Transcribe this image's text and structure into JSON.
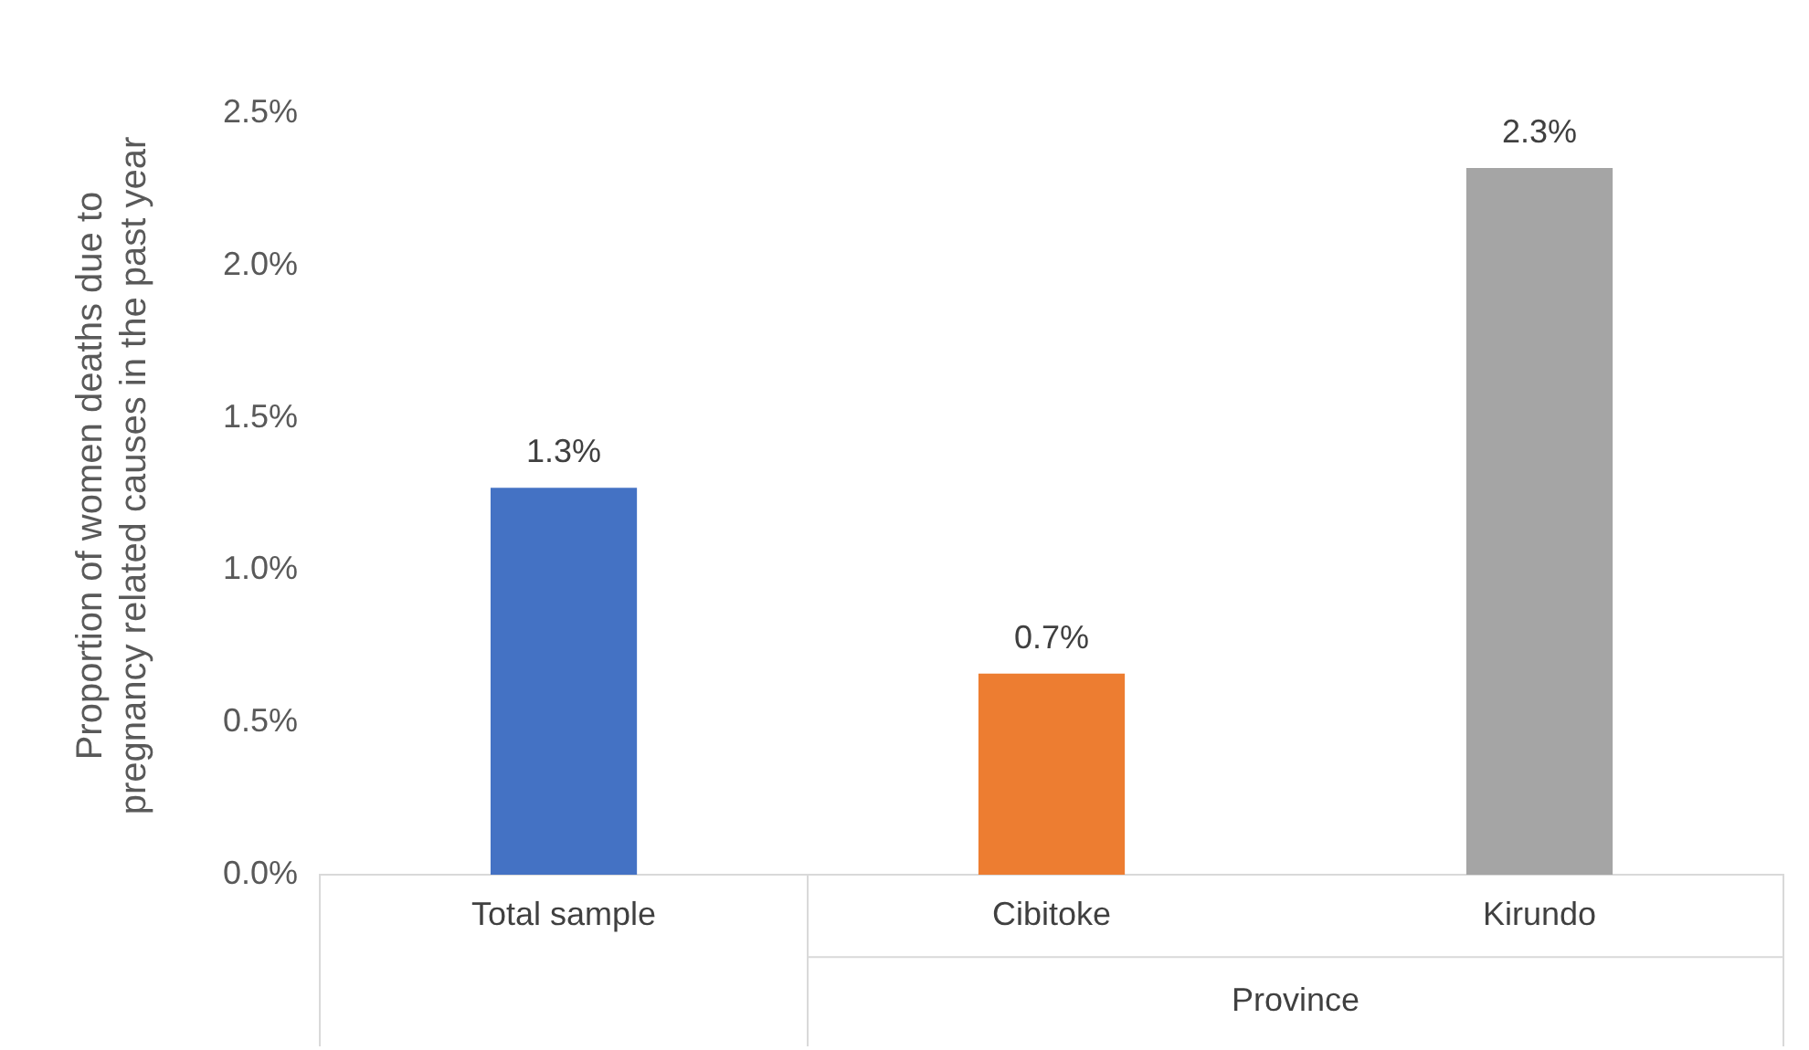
{
  "chart_data": {
    "type": "bar",
    "ylabel": "Proportion of women deaths due to pregnancy related causes in the past year",
    "categories": [
      "Total sample",
      "Cibitoke",
      "Kirundo"
    ],
    "values": [
      1.27,
      0.66,
      2.32
    ],
    "colors": [
      "#4472c4",
      "#ed7d31",
      "#a5a5a5"
    ],
    "value_labels": [
      "1.3%",
      "0.7%",
      "2.3%"
    ],
    "annotations": [
      "Province"
    ],
    "ylim": [
      0,
      2.5
    ],
    "yticks": [
      {
        "value": 0,
        "label": "0.0%"
      },
      {
        "value": 0.5,
        "label": "0.5%"
      },
      {
        "value": 1,
        "label": "1.0%"
      },
      {
        "value": 1.5,
        "label": "1.5%"
      },
      {
        "value": 2,
        "label": "2.0%"
      },
      {
        "value": 2.5,
        "label": "2.5%"
      }
    ],
    "grid": false,
    "legend": false
  }
}
